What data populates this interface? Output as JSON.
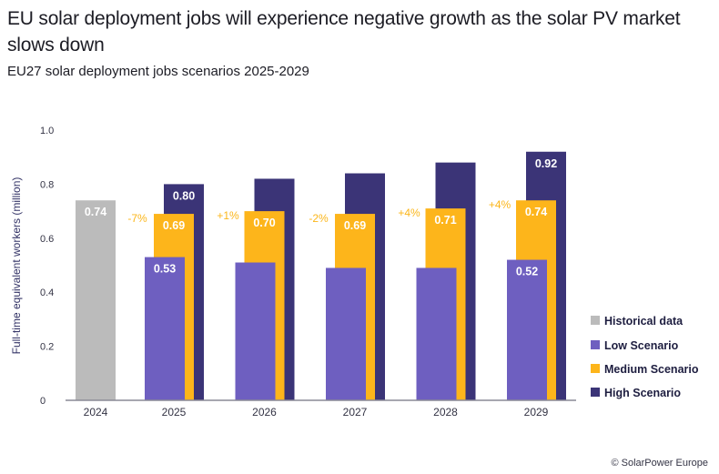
{
  "title": "EU solar deployment jobs will experience negative growth as the solar PV market slows down",
  "subtitle": "EU27 solar deployment jobs scenarios 2025-2029",
  "copyright": "© SolarPower Europe",
  "colors": {
    "historical": "#bbbbbb",
    "low": "#6e5fc0",
    "medium": "#fdb51b",
    "high": "#3b3477",
    "pct": "#fbb61a"
  },
  "chart_data": {
    "type": "bar",
    "title": "EU27 solar deployment jobs scenarios 2025-2029",
    "xlabel": "",
    "ylabel": "Full-time equivalent workers (million)",
    "ylim": [
      0,
      1.0
    ],
    "yticks": [
      "0",
      "0.2",
      "0.4",
      "0.6",
      "0.8",
      "1.0"
    ],
    "ytick_values": [
      0,
      0.2,
      0.4,
      0.6,
      0.8,
      1.0
    ],
    "categories": [
      "2024",
      "2025",
      "2026",
      "2027",
      "2028",
      "2029"
    ],
    "series": [
      {
        "name": "Historical data",
        "key": "historical",
        "values": [
          0.74,
          null,
          null,
          null,
          null,
          null
        ],
        "labels": [
          "0.74",
          null,
          null,
          null,
          null,
          null
        ]
      },
      {
        "name": "Low Scenario",
        "key": "low",
        "values": [
          null,
          0.53,
          0.51,
          0.49,
          0.49,
          0.52
        ],
        "labels": [
          null,
          "0.53",
          null,
          null,
          null,
          "0.52"
        ]
      },
      {
        "name": "Medium Scenario",
        "key": "medium",
        "values": [
          null,
          0.69,
          0.7,
          0.69,
          0.71,
          0.74
        ],
        "labels": [
          null,
          "0.69",
          "0.70",
          "0.69",
          "0.71",
          "0.74"
        ]
      },
      {
        "name": "High Scenario",
        "key": "high",
        "values": [
          null,
          0.8,
          0.82,
          0.84,
          0.88,
          0.92
        ],
        "labels": [
          null,
          "0.80",
          null,
          null,
          null,
          "0.92"
        ]
      }
    ],
    "growth_annotations": [
      "-7%",
      "+1%",
      "-2%",
      "+4%",
      "+4%"
    ],
    "legend": [
      "Historical data",
      "Low Scenario",
      "Medium Scenario",
      "High Scenario"
    ],
    "legend_position": "right",
    "grid": false
  }
}
